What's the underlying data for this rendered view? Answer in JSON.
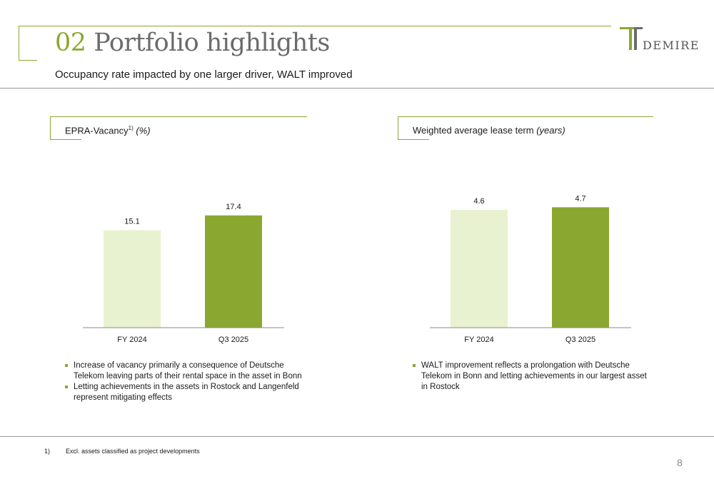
{
  "header": {
    "section_number": "02",
    "title": "Portfolio highlights",
    "subtitle": "Occupancy rate impacted by one larger driver, WALT improved"
  },
  "logo": {
    "text": "DEMIRE",
    "icon": "demire-logo-icon"
  },
  "colors": {
    "accent": "#8aa830",
    "bar_light": "#e9f2d0",
    "bar_dark": "#8aa830",
    "rule": "#9a9a9a"
  },
  "left_section": {
    "title": "EPRA-Vacancy",
    "superscript": "1)",
    "unit": "(%)",
    "bullets": [
      "Increase of vacancy primarily a consequence of Deutsche Telekom leaving parts of their rental space in the asset in Bonn",
      "Letting achievements in the assets in Rostock and Langenfeld represent mitigating effects"
    ]
  },
  "right_section": {
    "title": "Weighted average lease term",
    "unit": "(years)",
    "bullets": [
      "WALT improvement reflects a prolongation with Deutsche Telekom in Bonn and letting achievements in our largest asset in Rostock"
    ]
  },
  "chart_data": [
    {
      "type": "bar",
      "title": "EPRA-Vacancy (%)",
      "categories": [
        "FY 2024",
        "Q3 2025"
      ],
      "values": [
        15.1,
        17.4
      ],
      "value_labels": [
        "15.1",
        "17.4"
      ],
      "ylim": [
        0,
        27
      ],
      "grid": false,
      "legend": "none"
    },
    {
      "type": "bar",
      "title": "Weighted average lease term (years)",
      "categories": [
        "FY 2024",
        "Q3 2025"
      ],
      "values": [
        4.6,
        4.7
      ],
      "value_labels": [
        "4.6",
        "4.7"
      ],
      "ylim": [
        0,
        6.8
      ],
      "grid": false,
      "legend": "none"
    }
  ],
  "footer": {
    "footnote_number": "1)",
    "footnote_text": "Excl. assets classified as project developments",
    "page_number": "8"
  }
}
